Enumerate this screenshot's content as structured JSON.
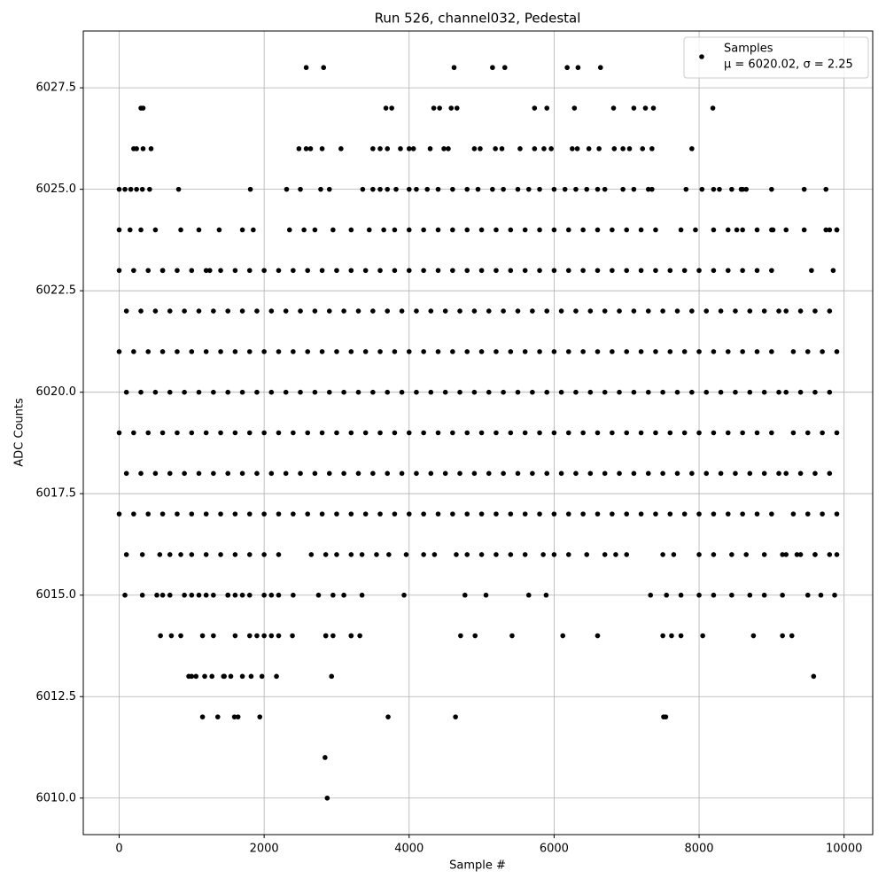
{
  "chart_data": {
    "type": "scatter",
    "title": "Run 526, channel032, Pedestal",
    "x_label": "Sample #",
    "y_label": "ADC Counts",
    "xlim": [
      -495,
      10395
    ],
    "ylim": [
      6009.1,
      6028.9
    ],
    "xticks": [
      0,
      2000,
      4000,
      6000,
      8000,
      10000
    ],
    "yticks": [
      {
        "value": 6010,
        "label": "6010.0"
      },
      {
        "value": 6012.5,
        "label": "6012.5"
      },
      {
        "value": 6015,
        "label": "6015.0"
      },
      {
        "value": 6017.5,
        "label": "6017.5"
      },
      {
        "value": 6020,
        "label": "6020.0"
      },
      {
        "value": 6022.5,
        "label": "6022.5"
      },
      {
        "value": 6025,
        "label": "6025.0"
      },
      {
        "value": 6027.5,
        "label": "6027.5"
      }
    ],
    "grid": true,
    "legend_position": "upper right",
    "legend_subtitle": "μ = 6020.02, σ = 2.25",
    "x": [
      2580,
      2820,
      4620,
      5150,
      5320,
      6180,
      6330,
      6640,
      300,
      330,
      3680,
      3760,
      4340,
      4420,
      4580,
      4660,
      5730,
      5900,
      6280,
      6820,
      7100,
      7260,
      7370,
      8190,
      200,
      240,
      330,
      440,
      2480,
      2580,
      2640,
      2800,
      3060,
      3500,
      3600,
      3700,
      3880,
      4000,
      4060,
      4290,
      4480,
      4540,
      4900,
      4980,
      5190,
      5280,
      5530,
      5730,
      5860,
      5960,
      6250,
      6320,
      6480,
      6620,
      6830,
      6950,
      7040,
      7220,
      7350,
      7900,
      8040,
      8200,
      8580,
      8650,
      0,
      80,
      160,
      240,
      320,
      420,
      820,
      1810,
      2310,
      2500,
      2780,
      2900,
      3360,
      3500,
      3600,
      3700,
      3820,
      4000,
      4100,
      4250,
      4400,
      4600,
      4800,
      4950,
      5150,
      5300,
      5500,
      5650,
      5800,
      6000,
      6150,
      6300,
      6450,
      6600,
      6700,
      6950,
      7100,
      7300,
      7350,
      7820,
      8280,
      8450,
      8600,
      9000,
      9450,
      9750,
      9900,
      9020,
      9800,
      8520,
      0,
      150,
      300,
      500,
      850,
      1100,
      1380,
      1700,
      1850,
      2350,
      2550,
      2700,
      2950,
      3200,
      3450,
      3650,
      3800,
      4000,
      4200,
      4400,
      4600,
      4800,
      5000,
      5200,
      5400,
      5600,
      5800,
      6000,
      6200,
      6400,
      6600,
      6800,
      7000,
      7200,
      7400,
      7750,
      7950,
      8200,
      8400,
      8600,
      8800,
      9000,
      9200,
      9450,
      9750,
      9900,
      9550,
      9850,
      1250,
      600,
      0,
      200,
      400,
      600,
      800,
      1000,
      1200,
      1400,
      1600,
      1800,
      2000,
      2200,
      2400,
      2600,
      2800,
      3000,
      3200,
      3400,
      3600,
      3800,
      4000,
      4200,
      4400,
      4600,
      4800,
      5000,
      5200,
      5400,
      5600,
      5800,
      6000,
      6200,
      6400,
      6600,
      6800,
      7000,
      7200,
      7400,
      7600,
      7800,
      8000,
      8200,
      8400,
      8600,
      8800,
      9000,
      9200,
      9400,
      9600,
      9800,
      100,
      300,
      500,
      700,
      900,
      1100,
      1300,
      1500,
      1700,
      1900,
      2100,
      2300,
      2500,
      2700,
      2900,
      3100,
      3300,
      3500,
      3700,
      3900,
      4100,
      4300,
      4500,
      4700,
      4900,
      5100,
      5300,
      5500,
      5700,
      5900,
      6100,
      6300,
      6500,
      6700,
      6900,
      7100,
      7300,
      7500,
      7700,
      7900,
      8100,
      8300,
      8500,
      8700,
      8900,
      9100,
      9300,
      9500,
      9700,
      9900,
      0,
      200,
      400,
      600,
      800,
      1000,
      1200,
      1400,
      1600,
      1800,
      2000,
      2200,
      2400,
      2600,
      2800,
      3000,
      3200,
      3400,
      3600,
      3800,
      4000,
      4200,
      4400,
      4600,
      4800,
      5000,
      5200,
      5400,
      5600,
      5800,
      6000,
      6200,
      6400,
      6600,
      6800,
      7000,
      7200,
      7400,
      7600,
      7800,
      8000,
      8200,
      8400,
      8600,
      8800,
      9000,
      9200,
      9400,
      9600,
      9800,
      100,
      300,
      500,
      700,
      900,
      1100,
      1300,
      1500,
      1700,
      1900,
      2100,
      2300,
      2500,
      2700,
      2900,
      3100,
      3300,
      3500,
      3700,
      3900,
      4100,
      4300,
      4500,
      4700,
      4900,
      5100,
      5300,
      5500,
      5700,
      5900,
      6100,
      6300,
      6500,
      6700,
      6900,
      7100,
      7300,
      7500,
      7700,
      7900,
      8100,
      8300,
      8500,
      8700,
      8900,
      9100,
      9300,
      9500,
      9700,
      9900,
      0,
      200,
      400,
      600,
      800,
      1000,
      1200,
      1400,
      1600,
      1800,
      2000,
      2200,
      2400,
      2600,
      2800,
      3000,
      3200,
      3400,
      3600,
      3800,
      4000,
      4200,
      4400,
      4600,
      4800,
      5000,
      5200,
      5400,
      5600,
      5800,
      6000,
      6200,
      6400,
      6600,
      6800,
      7000,
      7200,
      7400,
      7600,
      7800,
      8000,
      8200,
      8400,
      8600,
      8800,
      9000,
      9200,
      9400,
      9600,
      9800,
      100,
      300,
      500,
      700,
      900,
      1100,
      1300,
      1500,
      1700,
      1900,
      2100,
      2300,
      2500,
      2700,
      2900,
      3100,
      3300,
      3500,
      3700,
      3900,
      4100,
      4300,
      4500,
      4700,
      4900,
      5100,
      5300,
      5500,
      5700,
      5900,
      6100,
      6300,
      6500,
      6700,
      6900,
      7100,
      7300,
      7500,
      7700,
      7900,
      8100,
      8300,
      8500,
      8700,
      8900,
      9100,
      9300,
      9500,
      9700,
      9900,
      0,
      200,
      400,
      600,
      800,
      1000,
      1200,
      1400,
      1600,
      1800,
      2000,
      2200,
      2400,
      2600,
      2800,
      3000,
      3200,
      3400,
      3600,
      3800,
      4000,
      4200,
      4400,
      4600,
      4800,
      5000,
      5200,
      5400,
      5600,
      5800,
      6000,
      6200,
      6400,
      6600,
      6800,
      7000,
      7200,
      7400,
      7600,
      7800,
      8000,
      8200,
      8400,
      8600,
      8800,
      9000,
      9200,
      9400,
      9600,
      9800,
      100,
      320,
      560,
      700,
      850,
      1000,
      1200,
      1400,
      1600,
      1800,
      2000,
      2200,
      2650,
      2850,
      3000,
      3200,
      3350,
      3550,
      3720,
      3960,
      4200,
      4350,
      4650,
      4800,
      5000,
      5200,
      5400,
      5600,
      5850,
      6000,
      6200,
      6450,
      6700,
      6850,
      7000,
      7500,
      7650,
      8000,
      8200,
      8450,
      8650,
      8900,
      9150,
      9350,
      9600,
      9900,
      1100,
      1500,
      1700,
      2100,
      80,
      320,
      520,
      700,
      900,
      1200,
      1500,
      1800,
      2000,
      2200,
      2400,
      2750,
      2950,
      3100,
      3350,
      3930,
      4770,
      5060,
      5650,
      5890,
      7330,
      7550,
      7750,
      8000,
      8200,
      8450,
      8700,
      8900,
      9150,
      9500,
      9680,
      9870,
      600,
      1000,
      1300,
      1600,
      1900,
      2100,
      2850,
      3200,
      570,
      720,
      850,
      1150,
      1300,
      1600,
      1800,
      2000,
      2200,
      2390,
      2850,
      2950,
      3200,
      3320,
      4710,
      4910,
      5420,
      6120,
      6600,
      7500,
      7620,
      7750,
      8050,
      8750,
      9150,
      9280,
      9580,
      1000,
      1450,
      1700,
      960,
      1060,
      1180,
      1280,
      1440,
      1540,
      1820,
      1970,
      2170,
      2930,
      3710,
      4640,
      7510,
      7540,
      1150,
      1360,
      1590,
      1640,
      1940,
      2840,
      2870,
      7480,
      7670,
      2940,
      1940
    ],
    "series": [
      {
        "name": "Samples",
        "color": "#000000",
        "values": [
          6028,
          6028,
          6028,
          6028,
          6028,
          6028,
          6028,
          6028,
          6027,
          6027,
          6027,
          6027,
          6027,
          6027,
          6027,
          6027,
          6027,
          6027,
          6027,
          6027,
          6027,
          6027,
          6027,
          6027,
          6026,
          6026,
          6026,
          6026,
          6026,
          6026,
          6026,
          6026,
          6026,
          6026,
          6026,
          6026,
          6026,
          6026,
          6026,
          6026,
          6026,
          6026,
          6026,
          6026,
          6026,
          6026,
          6026,
          6026,
          6026,
          6026,
          6026,
          6026,
          6026,
          6026,
          6026,
          6026,
          6026,
          6026,
          6026,
          6026,
          6025,
          6025,
          6025,
          6025,
          6025,
          6025,
          6025,
          6025,
          6025,
          6025,
          6025,
          6025,
          6025,
          6025,
          6025,
          6025,
          6025,
          6025,
          6025,
          6025,
          6025,
          6025,
          6025,
          6025,
          6025,
          6025,
          6025,
          6025,
          6025,
          6025,
          6025,
          6025,
          6025,
          6025,
          6025,
          6025,
          6025,
          6025,
          6025,
          6025,
          6025,
          6025,
          6025,
          6025,
          6025,
          6025,
          6025,
          6025,
          6025,
          6025,
          6024,
          6024,
          6024,
          6024,
          6024,
          6024,
          6024,
          6024,
          6024,
          6024,
          6024,
          6024,
          6024,
          6024,
          6024,
          6024,
          6024,
          6024,
          6024,
          6024,
          6024,
          6024,
          6024,
          6024,
          6024,
          6024,
          6024,
          6024,
          6024,
          6024,
          6024,
          6024,
          6024,
          6024,
          6024,
          6024,
          6024,
          6024,
          6024,
          6024,
          6024,
          6024,
          6024,
          6024,
          6024,
          6024,
          6024,
          6024,
          6024,
          6024,
          6023,
          6023,
          6023,
          6023,
          6023,
          6023,
          6023,
          6023,
          6023,
          6023,
          6023,
          6023,
          6023,
          6023,
          6023,
          6023,
          6023,
          6023,
          6023,
          6023,
          6023,
          6023,
          6023,
          6023,
          6023,
          6023,
          6023,
          6023,
          6023,
          6023,
          6023,
          6023,
          6023,
          6023,
          6023,
          6023,
          6023,
          6023,
          6023,
          6023,
          6023,
          6023,
          6023,
          6023,
          6023,
          6023,
          6023,
          6023,
          6023,
          6023,
          6022,
          6022,
          6022,
          6022,
          6022,
          6022,
          6022,
          6022,
          6022,
          6022,
          6022,
          6022,
          6022,
          6022,
          6022,
          6022,
          6022,
          6022,
          6022,
          6022,
          6022,
          6022,
          6022,
          6022,
          6022,
          6022,
          6022,
          6022,
          6022,
          6022,
          6022,
          6022,
          6022,
          6022,
          6022,
          6022,
          6022,
          6022,
          6022,
          6022,
          6022,
          6022,
          6022,
          6022,
          6022,
          6022,
          6022,
          6022,
          6022,
          6022,
          6021,
          6021,
          6021,
          6021,
          6021,
          6021,
          6021,
          6021,
          6021,
          6021,
          6021,
          6021,
          6021,
          6021,
          6021,
          6021,
          6021,
          6021,
          6021,
          6021,
          6021,
          6021,
          6021,
          6021,
          6021,
          6021,
          6021,
          6021,
          6021,
          6021,
          6021,
          6021,
          6021,
          6021,
          6021,
          6021,
          6021,
          6021,
          6021,
          6021,
          6021,
          6021,
          6021,
          6021,
          6021,
          6021,
          6021,
          6021,
          6021,
          6021,
          6020,
          6020,
          6020,
          6020,
          6020,
          6020,
          6020,
          6020,
          6020,
          6020,
          6020,
          6020,
          6020,
          6020,
          6020,
          6020,
          6020,
          6020,
          6020,
          6020,
          6020,
          6020,
          6020,
          6020,
          6020,
          6020,
          6020,
          6020,
          6020,
          6020,
          6020,
          6020,
          6020,
          6020,
          6020,
          6020,
          6020,
          6020,
          6020,
          6020,
          6020,
          6020,
          6020,
          6020,
          6020,
          6020,
          6020,
          6020,
          6020,
          6020,
          6019,
          6019,
          6019,
          6019,
          6019,
          6019,
          6019,
          6019,
          6019,
          6019,
          6019,
          6019,
          6019,
          6019,
          6019,
          6019,
          6019,
          6019,
          6019,
          6019,
          6019,
          6019,
          6019,
          6019,
          6019,
          6019,
          6019,
          6019,
          6019,
          6019,
          6019,
          6019,
          6019,
          6019,
          6019,
          6019,
          6019,
          6019,
          6019,
          6019,
          6019,
          6019,
          6019,
          6019,
          6019,
          6019,
          6019,
          6019,
          6019,
          6019,
          6018,
          6018,
          6018,
          6018,
          6018,
          6018,
          6018,
          6018,
          6018,
          6018,
          6018,
          6018,
          6018,
          6018,
          6018,
          6018,
          6018,
          6018,
          6018,
          6018,
          6018,
          6018,
          6018,
          6018,
          6018,
          6018,
          6018,
          6018,
          6018,
          6018,
          6018,
          6018,
          6018,
          6018,
          6018,
          6018,
          6018,
          6018,
          6018,
          6018,
          6018,
          6018,
          6018,
          6018,
          6018,
          6018,
          6018,
          6018,
          6018,
          6018,
          6017,
          6017,
          6017,
          6017,
          6017,
          6017,
          6017,
          6017,
          6017,
          6017,
          6017,
          6017,
          6017,
          6017,
          6017,
          6017,
          6017,
          6017,
          6017,
          6017,
          6017,
          6017,
          6017,
          6017,
          6017,
          6017,
          6017,
          6017,
          6017,
          6017,
          6017,
          6017,
          6017,
          6017,
          6017,
          6017,
          6017,
          6017,
          6017,
          6017,
          6017,
          6017,
          6017,
          6017,
          6017,
          6017,
          6017,
          6017,
          6017,
          6017,
          6016,
          6016,
          6016,
          6016,
          6016,
          6016,
          6016,
          6016,
          6016,
          6016,
          6016,
          6016,
          6016,
          6016,
          6016,
          6016,
          6016,
          6016,
          6016,
          6016,
          6016,
          6016,
          6016,
          6016,
          6016,
          6016,
          6016,
          6016,
          6016,
          6016,
          6016,
          6016,
          6016,
          6016,
          6016,
          6016,
          6016,
          6016,
          6016,
          6016,
          6016,
          6016,
          6016,
          6016,
          6016,
          6016,
          6016,
          6016,
          6016,
          6016,
          6015,
          6015,
          6015,
          6015,
          6015,
          6015,
          6015,
          6015,
          6015,
          6015,
          6015,
          6015,
          6015,
          6015,
          6015,
          6015,
          6015,
          6015,
          6015,
          6015,
          6015,
          6015,
          6015,
          6015,
          6015,
          6015,
          6015,
          6015,
          6015,
          6015,
          6015,
          6015,
          6015,
          6015,
          6015,
          6015,
          6015,
          6015,
          6015,
          6015,
          6014,
          6014,
          6014,
          6014,
          6014,
          6014,
          6014,
          6014,
          6014,
          6014,
          6014,
          6014,
          6014,
          6014,
          6014,
          6014,
          6014,
          6014,
          6014,
          6014,
          6014,
          6014,
          6014,
          6014,
          6014,
          6014,
          6014,
          6014,
          6014,
          6014,
          6013,
          6013,
          6013,
          6013,
          6013,
          6013,
          6013,
          6013,
          6013,
          6013,
          6013,
          6013,
          6013,
          6013,
          6012,
          6012,
          6012,
          6012,
          6012,
          6012,
          6012,
          6012,
          6012,
          6011,
          6010
        ]
      }
    ]
  }
}
